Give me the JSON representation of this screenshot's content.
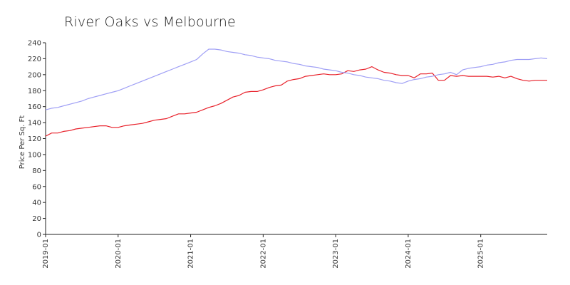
{
  "chart_data": {
    "type": "line",
    "title": "River Oaks vs Melbourne",
    "xlabel": "",
    "ylabel": "Price Per Sq. Ft",
    "ylim": [
      0,
      240
    ],
    "yticks": [
      0,
      20,
      40,
      60,
      80,
      100,
      120,
      140,
      160,
      180,
      200,
      220,
      240
    ],
    "xlim": [
      "2019-01",
      "2025-12"
    ],
    "xticks": [
      "2019-01",
      "2020-01",
      "2021-01",
      "2022-01",
      "2023-01",
      "2024-01",
      "2025-01"
    ],
    "grid": false,
    "series": [
      {
        "color": "#e8202a",
        "x": [
          "2019-01",
          "2019-02",
          "2019-03",
          "2019-04",
          "2019-05",
          "2019-06",
          "2019-07",
          "2019-08",
          "2019-09",
          "2019-10",
          "2019-11",
          "2019-12",
          "2020-01",
          "2020-02",
          "2020-03",
          "2020-04",
          "2020-05",
          "2020-06",
          "2020-07",
          "2020-08",
          "2020-09",
          "2020-10",
          "2020-11",
          "2020-12",
          "2021-01",
          "2021-02",
          "2021-03",
          "2021-04",
          "2021-05",
          "2021-06",
          "2021-07",
          "2021-08",
          "2021-09",
          "2021-10",
          "2021-11",
          "2021-12",
          "2022-01",
          "2022-02",
          "2022-03",
          "2022-04",
          "2022-05",
          "2022-06",
          "2022-07",
          "2022-08",
          "2022-09",
          "2022-10",
          "2022-11",
          "2022-12",
          "2023-01",
          "2023-02",
          "2023-03",
          "2023-04",
          "2023-05",
          "2023-06",
          "2023-07",
          "2023-08",
          "2023-09",
          "2023-10",
          "2023-11",
          "2023-12",
          "2024-01",
          "2024-02",
          "2024-03",
          "2024-04",
          "2024-05",
          "2024-06",
          "2024-07",
          "2024-08",
          "2024-09",
          "2024-10",
          "2024-11",
          "2024-12",
          "2025-01",
          "2025-02",
          "2025-03",
          "2025-04",
          "2025-05",
          "2025-06",
          "2025-07",
          "2025-08",
          "2025-09",
          "2025-10",
          "2025-11",
          "2025-12"
        ],
        "y": [
          123,
          127,
          127,
          129,
          130,
          132,
          133,
          134,
          135,
          136,
          136,
          134,
          134,
          136,
          137,
          138,
          139,
          141,
          143,
          144,
          145,
          148,
          151,
          151,
          152,
          153,
          156,
          159,
          161,
          164,
          168,
          172,
          174,
          178,
          179,
          179,
          181,
          184,
          186,
          187,
          192,
          194,
          195,
          198,
          199,
          200,
          201,
          200,
          200,
          201,
          205,
          204,
          206,
          207,
          210,
          206,
          203,
          202,
          200,
          199,
          199,
          196,
          201,
          201,
          202,
          193,
          193,
          199,
          198,
          199,
          198,
          198,
          198,
          198,
          197,
          198,
          196,
          198,
          195,
          193,
          192,
          193,
          193,
          193
        ]
      },
      {
        "color": "#9f9ff5",
        "x": [
          "2019-01",
          "2019-02",
          "2019-03",
          "2019-04",
          "2019-05",
          "2019-06",
          "2019-07",
          "2019-08",
          "2019-09",
          "2019-10",
          "2019-11",
          "2019-12",
          "2020-01",
          "2020-02",
          "2020-03",
          "2020-04",
          "2020-05",
          "2020-06",
          "2020-07",
          "2020-08",
          "2020-09",
          "2020-10",
          "2020-11",
          "2020-12",
          "2021-01",
          "2021-02",
          "2021-03",
          "2021-04",
          "2021-05",
          "2021-06",
          "2021-07",
          "2021-08",
          "2021-09",
          "2021-10",
          "2021-11",
          "2021-12",
          "2022-01",
          "2022-02",
          "2022-03",
          "2022-04",
          "2022-05",
          "2022-06",
          "2022-07",
          "2022-08",
          "2022-09",
          "2022-10",
          "2022-11",
          "2022-12",
          "2023-01",
          "2023-02",
          "2023-03",
          "2023-04",
          "2023-05",
          "2023-06",
          "2023-07",
          "2023-08",
          "2023-09",
          "2023-10",
          "2023-11",
          "2023-12",
          "2024-01",
          "2024-02",
          "2024-03",
          "2024-04",
          "2024-05",
          "2024-06",
          "2024-07",
          "2024-08",
          "2024-09",
          "2024-10",
          "2024-11",
          "2024-12",
          "2025-01",
          "2025-02",
          "2025-03",
          "2025-04",
          "2025-05",
          "2025-06",
          "2025-07",
          "2025-08",
          "2025-09",
          "2025-10",
          "2025-11",
          "2025-12"
        ],
        "y": [
          156,
          158,
          159,
          161,
          163,
          165,
          167,
          170,
          172,
          174,
          176,
          178,
          180,
          183,
          186,
          189,
          192,
          195,
          198,
          201,
          204,
          207,
          210,
          213,
          216,
          219,
          226,
          232,
          232,
          231,
          229,
          228,
          227,
          225,
          224,
          222,
          221,
          220,
          218,
          217,
          216,
          214,
          213,
          211,
          210,
          209,
          207,
          206,
          205,
          203,
          202,
          200,
          199,
          197,
          196,
          195,
          193,
          192,
          190,
          189,
          192,
          194,
          195,
          197,
          198,
          200,
          201,
          203,
          200,
          206,
          208,
          209,
          210,
          212,
          213,
          215,
          216,
          218,
          219,
          219,
          219,
          220,
          221,
          220
        ]
      }
    ]
  }
}
